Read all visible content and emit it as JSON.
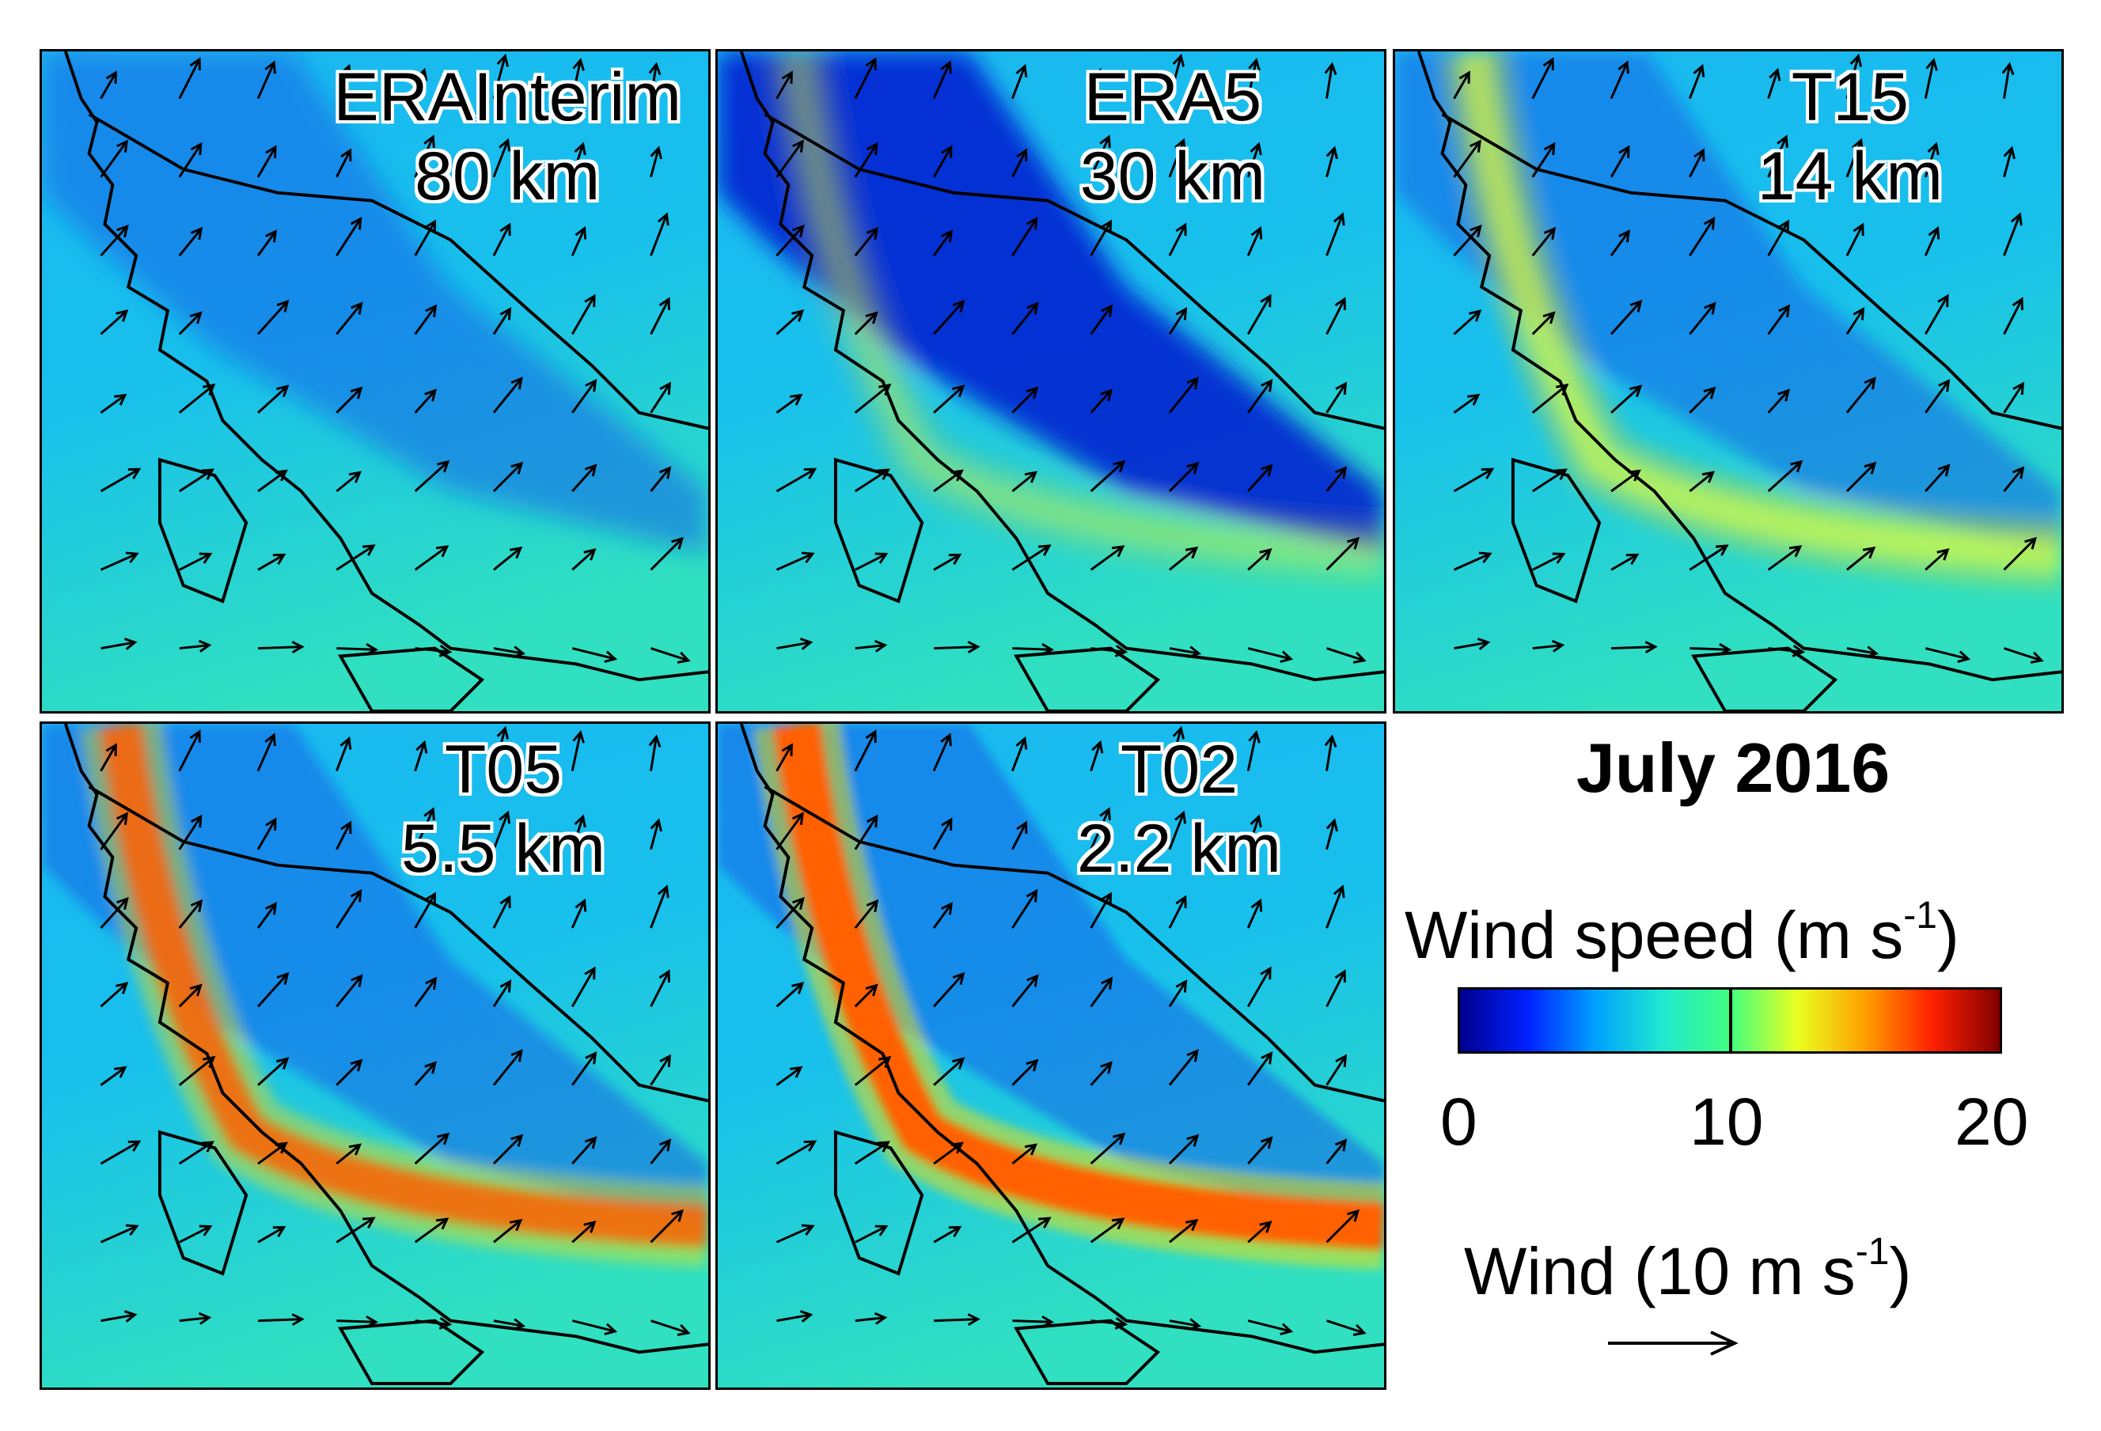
{
  "figure": {
    "panels": [
      {
        "id": "erainterim",
        "name": "ERAInterim",
        "resolution": "80 km",
        "intensity": 0.2
      },
      {
        "id": "era5",
        "name": "ERA5",
        "resolution": "30 km",
        "intensity": 0.35
      },
      {
        "id": "t15",
        "name": "T15",
        "resolution": "14 km",
        "intensity": 0.6
      },
      {
        "id": "t05",
        "name": "T05",
        "resolution": "5.5 km",
        "intensity": 0.85
      },
      {
        "id": "t02",
        "name": "T02",
        "resolution": "2.2 km",
        "intensity": 1.0
      }
    ],
    "legend": {
      "month": "July 2016",
      "colorbar_title": "Wind speed (m s",
      "colorbar_title_sup": "-1",
      "colorbar_title_end": ")",
      "ticks": [
        "0",
        "10",
        "20"
      ],
      "vector_title": "Wind (10 m s",
      "vector_title_sup": "-1",
      "vector_title_end": ")"
    },
    "colors": {
      "scale": [
        "#00008f",
        "#0020ff",
        "#00a0ff",
        "#20e8d0",
        "#40ff80",
        "#e8ff20",
        "#ffa000",
        "#ff2000",
        "#800000"
      ],
      "background_ocean": "#20c8e0",
      "coastline": "#000000"
    }
  }
}
